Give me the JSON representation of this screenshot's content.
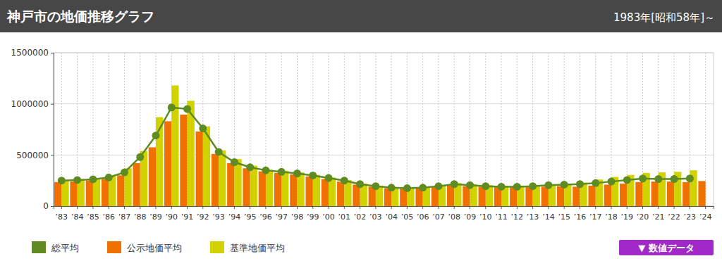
{
  "chart_data": {
    "type": "bar",
    "title": "神戸市の地価推移グラフ",
    "subtitle": "1983年[昭和58年]～",
    "annotations": [
      "▼ 数値データ"
    ],
    "categories": [
      "’83",
      "’84",
      "’85",
      "’86",
      "’87",
      "’88",
      "’89",
      "’90",
      "’91",
      "’92",
      "’93",
      "’94",
      "’95",
      "’96",
      "’97",
      "’98",
      "’99",
      "’00",
      "’01",
      "’02",
      "’03",
      "’04",
      "’05",
      "’06",
      "’07",
      "’08",
      "’09",
      "’10",
      "’11",
      "’12",
      "’13",
      "’14",
      "’15",
      "’16",
      "’17",
      "’18",
      "’19",
      "’20",
      "’21",
      "’22",
      "’23",
      "’24"
    ],
    "series": [
      {
        "name": "総平均",
        "type": "line",
        "marker": "circle",
        "color": "#5e8c22",
        "values": [
          250000,
          255000,
          262000,
          280000,
          330000,
          480000,
          690000,
          965000,
          950000,
          760000,
          530000,
          430000,
          380000,
          350000,
          335000,
          320000,
          300000,
          275000,
          250000,
          215000,
          195000,
          180000,
          175000,
          180000,
          195000,
          215000,
          205000,
          195000,
          190000,
          190000,
          195000,
          205000,
          210000,
          215000,
          225000,
          240000,
          255000,
          270000,
          265000,
          265000,
          270000,
          null
        ]
      },
      {
        "name": "公示地価平均",
        "type": "bar",
        "color": "#f07000",
        "values": [
          235000,
          240000,
          250000,
          265000,
          300000,
          420000,
          575000,
          830000,
          895000,
          730000,
          510000,
          420000,
          370000,
          340000,
          325000,
          310000,
          290000,
          265000,
          240000,
          210000,
          190000,
          175000,
          170000,
          175000,
          185000,
          200000,
          195000,
          190000,
          185000,
          185000,
          185000,
          190000,
          195000,
          190000,
          200000,
          210000,
          220000,
          235000,
          240000,
          240000,
          235000,
          245000
        ]
      },
      {
        "name": "基準地価平均",
        "type": "bar",
        "color": "#d2d200",
        "values": [
          250000,
          260000,
          270000,
          290000,
          370000,
          540000,
          870000,
          1180000,
          1030000,
          780000,
          545000,
          460000,
          395000,
          355000,
          345000,
          330000,
          305000,
          280000,
          255000,
          220000,
          200000,
          185000,
          180000,
          185000,
          200000,
          225000,
          215000,
          205000,
          200000,
          195000,
          205000,
          215000,
          220000,
          230000,
          260000,
          285000,
          305000,
          325000,
          330000,
          335000,
          350000,
          null
        ]
      }
    ],
    "ylim": [
      0,
      1500000
    ],
    "yticks": [
      0,
      500000,
      1000000,
      1500000
    ],
    "grid": true,
    "legend": "bottom-left"
  }
}
